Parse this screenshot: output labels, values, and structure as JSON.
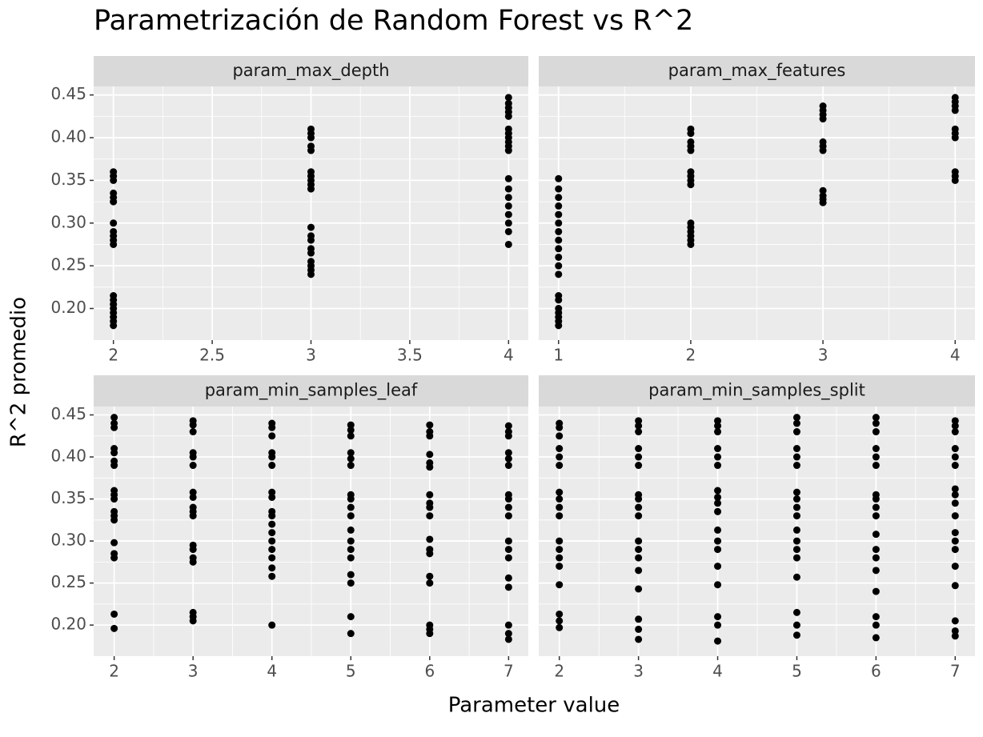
{
  "title": "Parametrización de Random Forest vs R^2",
  "x_label": "Parameter value",
  "y_label": "R^2 promedio",
  "chart_data": [
    {
      "type": "scatter",
      "title": "param_max_depth",
      "color": "#000000",
      "grid": true,
      "xlim": [
        1.9,
        4.1
      ],
      "ylim": [
        0.163,
        0.46
      ],
      "xticks": [
        2,
        2.5,
        3,
        3.5,
        4
      ],
      "yticks": [
        {
          "value": 0.2,
          "label": "0.20"
        },
        0.25,
        {
          "value": 0.3,
          "label": "0.30"
        },
        0.35,
        {
          "value": 0.4,
          "label": "0.40"
        },
        0.45
      ],
      "x": [
        2,
        2,
        2,
        2,
        2,
        2,
        2,
        2,
        2,
        2,
        2,
        2,
        2,
        2,
        2,
        2,
        2,
        2,
        2,
        3,
        3,
        3,
        3,
        3,
        3,
        3,
        3,
        3,
        3,
        3,
        3,
        3,
        3,
        3,
        3,
        3,
        3,
        3,
        4,
        4,
        4,
        4,
        4,
        4,
        4,
        4,
        4,
        4,
        4,
        4,
        4,
        4,
        4,
        4,
        4,
        4,
        4
      ],
      "values": [
        0.36,
        0.355,
        0.35,
        0.335,
        0.33,
        0.325,
        0.3,
        0.29,
        0.285,
        0.28,
        0.275,
        0.215,
        0.21,
        0.205,
        0.2,
        0.195,
        0.19,
        0.185,
        0.18,
        0.41,
        0.405,
        0.4,
        0.39,
        0.385,
        0.36,
        0.355,
        0.35,
        0.345,
        0.34,
        0.295,
        0.285,
        0.28,
        0.27,
        0.265,
        0.255,
        0.25,
        0.245,
        0.24,
        0.447,
        0.44,
        0.435,
        0.43,
        0.425,
        0.41,
        0.405,
        0.4,
        0.395,
        0.39,
        0.385,
        0.352,
        0.34,
        0.33,
        0.32,
        0.31,
        0.3,
        0.29,
        0.275
      ]
    },
    {
      "type": "scatter",
      "title": "param_max_features",
      "color": "#000000",
      "grid": true,
      "xlim": [
        0.85,
        4.15
      ],
      "ylim": [
        0.163,
        0.46
      ],
      "xticks": [
        1,
        2,
        3,
        4
      ],
      "yticks": [
        {
          "value": 0.2,
          "label": "0.20"
        },
        0.25,
        {
          "value": 0.3,
          "label": "0.30"
        },
        0.35,
        {
          "value": 0.4,
          "label": "0.40"
        },
        0.45
      ],
      "x": [
        1,
        1,
        1,
        1,
        1,
        1,
        1,
        1,
        1,
        1,
        1,
        1,
        1,
        1,
        1,
        1,
        1,
        1,
        1,
        2,
        2,
        2,
        2,
        2,
        2,
        2,
        2,
        2,
        2,
        2,
        2,
        2,
        2,
        2,
        3,
        3,
        3,
        3,
        3,
        3,
        3,
        3,
        3,
        3,
        3,
        4,
        4,
        4,
        4,
        4,
        4,
        4,
        4,
        4,
        4
      ],
      "values": [
        0.352,
        0.34,
        0.33,
        0.32,
        0.31,
        0.3,
        0.29,
        0.28,
        0.27,
        0.26,
        0.25,
        0.24,
        0.215,
        0.21,
        0.2,
        0.195,
        0.19,
        0.185,
        0.18,
        0.41,
        0.405,
        0.395,
        0.39,
        0.385,
        0.36,
        0.355,
        0.35,
        0.345,
        0.3,
        0.295,
        0.29,
        0.285,
        0.28,
        0.275,
        0.437,
        0.432,
        0.427,
        0.422,
        0.395,
        0.39,
        0.385,
        0.338,
        0.332,
        0.328,
        0.324,
        0.447,
        0.442,
        0.437,
        0.432,
        0.41,
        0.405,
        0.4,
        0.36,
        0.355,
        0.35
      ]
    },
    {
      "type": "scatter",
      "title": "param_min_samples_leaf",
      "color": "#000000",
      "grid": true,
      "xlim": [
        1.74,
        7.25
      ],
      "ylim": [
        0.163,
        0.46
      ],
      "xticks": [
        2,
        3,
        4,
        5,
        6,
        7
      ],
      "yticks": [
        {
          "value": 0.2,
          "label": "0.20"
        },
        0.25,
        {
          "value": 0.3,
          "label": "0.30"
        },
        0.35,
        {
          "value": 0.4,
          "label": "0.40"
        },
        0.45
      ],
      "x": [
        2,
        2,
        2,
        2,
        2,
        2,
        2,
        2,
        2,
        2,
        2,
        2,
        2,
        2,
        2,
        2,
        2,
        2,
        3,
        3,
        3,
        3,
        3,
        3,
        3,
        3,
        3,
        3,
        3,
        3,
        3,
        3,
        3,
        3,
        3,
        3,
        4,
        4,
        4,
        4,
        4,
        4,
        4,
        4,
        4,
        4,
        4,
        4,
        4,
        4,
        4,
        4,
        4,
        4,
        5,
        5,
        5,
        5,
        5,
        5,
        5,
        5,
        5,
        5,
        5,
        5,
        5,
        5,
        5,
        5,
        5,
        5,
        6,
        6,
        6,
        6,
        6,
        6,
        6,
        6,
        6,
        6,
        6,
        6,
        6,
        6,
        6,
        6,
        6,
        6,
        7,
        7,
        7,
        7,
        7,
        7,
        7,
        7,
        7,
        7,
        7,
        7,
        7,
        7,
        7,
        7,
        7,
        7
      ],
      "values": [
        0.447,
        0.44,
        0.435,
        0.41,
        0.405,
        0.395,
        0.39,
        0.36,
        0.355,
        0.35,
        0.335,
        0.33,
        0.325,
        0.298,
        0.285,
        0.28,
        0.213,
        0.196,
        0.443,
        0.438,
        0.43,
        0.405,
        0.4,
        0.39,
        0.358,
        0.352,
        0.34,
        0.335,
        0.33,
        0.295,
        0.29,
        0.28,
        0.275,
        0.215,
        0.21,
        0.205,
        0.44,
        0.435,
        0.425,
        0.405,
        0.4,
        0.39,
        0.358,
        0.352,
        0.335,
        0.33,
        0.32,
        0.31,
        0.3,
        0.29,
        0.28,
        0.268,
        0.258,
        0.2,
        0.438,
        0.432,
        0.425,
        0.405,
        0.398,
        0.39,
        0.355,
        0.35,
        0.34,
        0.33,
        0.313,
        0.3,
        0.29,
        0.28,
        0.26,
        0.25,
        0.21,
        0.19,
        0.438,
        0.43,
        0.425,
        0.403,
        0.393,
        0.388,
        0.355,
        0.345,
        0.34,
        0.33,
        0.302,
        0.29,
        0.285,
        0.258,
        0.25,
        0.2,
        0.195,
        0.19,
        0.437,
        0.43,
        0.425,
        0.405,
        0.398,
        0.39,
        0.355,
        0.35,
        0.34,
        0.33,
        0.3,
        0.29,
        0.28,
        0.256,
        0.245,
        0.2,
        0.19,
        0.183
      ]
    },
    {
      "type": "scatter",
      "title": "param_min_samples_split",
      "color": "#000000",
      "grid": true,
      "xlim": [
        1.74,
        7.25
      ],
      "ylim": [
        0.163,
        0.46
      ],
      "xticks": [
        2,
        3,
        4,
        5,
        6,
        7
      ],
      "yticks": [
        {
          "value": 0.2,
          "label": "0.20"
        },
        0.25,
        {
          "value": 0.3,
          "label": "0.30"
        },
        0.35,
        {
          "value": 0.4,
          "label": "0.40"
        },
        0.45
      ],
      "x": [
        2,
        2,
        2,
        2,
        2,
        2,
        2,
        2,
        2,
        2,
        2,
        2,
        2,
        2,
        2,
        2,
        2,
        2,
        3,
        3,
        3,
        3,
        3,
        3,
        3,
        3,
        3,
        3,
        3,
        3,
        3,
        3,
        3,
        3,
        3,
        3,
        4,
        4,
        4,
        4,
        4,
        4,
        4,
        4,
        4,
        4,
        4,
        4,
        4,
        4,
        4,
        4,
        4,
        4,
        5,
        5,
        5,
        5,
        5,
        5,
        5,
        5,
        5,
        5,
        5,
        5,
        5,
        5,
        5,
        5,
        5,
        5,
        6,
        6,
        6,
        6,
        6,
        6,
        6,
        6,
        6,
        6,
        6,
        6,
        6,
        6,
        6,
        6,
        6,
        6,
        7,
        7,
        7,
        7,
        7,
        7,
        7,
        7,
        7,
        7,
        7,
        7,
        7,
        7,
        7,
        7,
        7,
        7
      ],
      "values": [
        0.44,
        0.435,
        0.425,
        0.41,
        0.4,
        0.39,
        0.358,
        0.35,
        0.34,
        0.33,
        0.3,
        0.29,
        0.28,
        0.27,
        0.248,
        0.213,
        0.205,
        0.197,
        0.443,
        0.437,
        0.43,
        0.41,
        0.4,
        0.39,
        0.355,
        0.35,
        0.34,
        0.33,
        0.3,
        0.29,
        0.28,
        0.265,
        0.243,
        0.207,
        0.195,
        0.183,
        0.443,
        0.437,
        0.43,
        0.41,
        0.4,
        0.39,
        0.36,
        0.352,
        0.345,
        0.335,
        0.313,
        0.3,
        0.29,
        0.27,
        0.248,
        0.21,
        0.2,
        0.181,
        0.447,
        0.44,
        0.43,
        0.41,
        0.4,
        0.39,
        0.358,
        0.35,
        0.34,
        0.33,
        0.313,
        0.3,
        0.29,
        0.28,
        0.257,
        0.215,
        0.2,
        0.188,
        0.447,
        0.44,
        0.43,
        0.41,
        0.4,
        0.39,
        0.355,
        0.35,
        0.34,
        0.33,
        0.308,
        0.29,
        0.28,
        0.265,
        0.24,
        0.21,
        0.2,
        0.185,
        0.443,
        0.437,
        0.43,
        0.41,
        0.4,
        0.39,
        0.362,
        0.355,
        0.345,
        0.33,
        0.31,
        0.3,
        0.29,
        0.27,
        0.247,
        0.205,
        0.193,
        0.187
      ]
    }
  ]
}
